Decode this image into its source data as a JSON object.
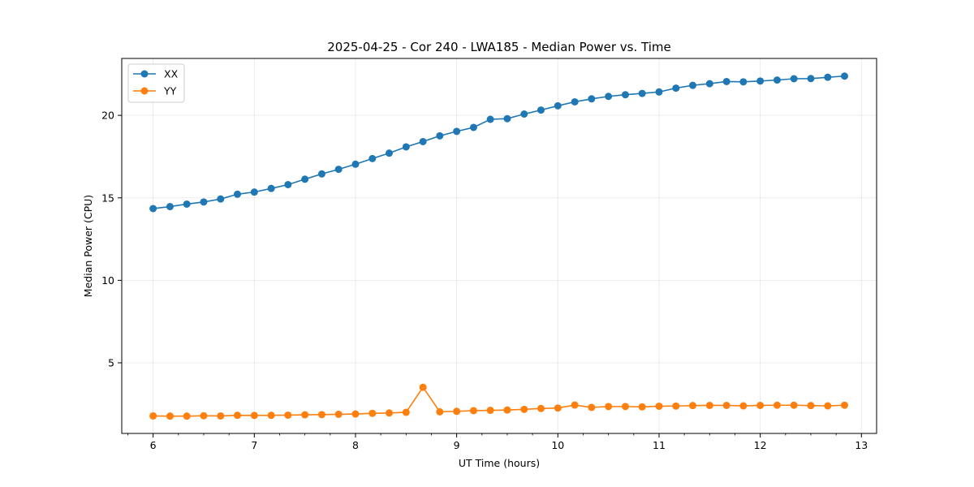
{
  "chart_data": {
    "type": "line",
    "title": "2025-04-25 - Cor 240 - LWA185 - Median Power vs. Time",
    "xlabel": "UT Time (hours)",
    "ylabel": "Median Power (CPU)",
    "xlim": [
      5.69,
      13.15
    ],
    "ylim": [
      0.72,
      23.45
    ],
    "xticks": [
      6,
      7,
      8,
      9,
      10,
      11,
      12,
      13
    ],
    "xtick_labels": [
      "6",
      "7",
      "8",
      "9",
      "10",
      "11",
      "12",
      "13"
    ],
    "xminor_step": 0.25,
    "yticks": [
      5,
      10,
      15,
      20
    ],
    "ytick_labels": [
      "5",
      "10",
      "15",
      "20"
    ],
    "grid": true,
    "legend_position": "upper-left",
    "x": [
      6.0,
      6.167,
      6.333,
      6.5,
      6.667,
      6.833,
      7.0,
      7.167,
      7.333,
      7.5,
      7.667,
      7.833,
      8.0,
      8.167,
      8.333,
      8.5,
      8.667,
      8.833,
      9.0,
      9.167,
      9.333,
      9.5,
      9.667,
      9.833,
      10.0,
      10.167,
      10.333,
      10.5,
      10.667,
      10.833,
      11.0,
      11.167,
      11.333,
      11.5,
      11.667,
      11.833,
      12.0,
      12.167,
      12.333,
      12.5,
      12.667,
      12.833
    ],
    "series": [
      {
        "name": "XX",
        "color": "#1f77b4",
        "values": [
          14.35,
          14.47,
          14.62,
          14.75,
          14.93,
          15.22,
          15.35,
          15.57,
          15.8,
          16.13,
          16.45,
          16.73,
          17.04,
          17.38,
          17.71,
          18.09,
          18.41,
          18.76,
          19.03,
          19.27,
          19.76,
          19.8,
          20.08,
          20.32,
          20.58,
          20.82,
          21.0,
          21.15,
          21.25,
          21.33,
          21.42,
          21.65,
          21.82,
          21.92,
          22.05,
          22.03,
          22.08,
          22.14,
          22.22,
          22.23,
          22.31,
          22.38
        ]
      },
      {
        "name": "YY",
        "color": "#ff7f0e",
        "values": [
          1.78,
          1.77,
          1.77,
          1.79,
          1.78,
          1.82,
          1.81,
          1.82,
          1.83,
          1.85,
          1.86,
          1.88,
          1.9,
          1.94,
          1.96,
          2.0,
          3.52,
          2.03,
          2.06,
          2.1,
          2.12,
          2.14,
          2.18,
          2.23,
          2.26,
          2.44,
          2.3,
          2.35,
          2.35,
          2.33,
          2.37,
          2.38,
          2.41,
          2.42,
          2.42,
          2.39,
          2.42,
          2.43,
          2.43,
          2.41,
          2.39,
          2.43
        ]
      }
    ]
  }
}
